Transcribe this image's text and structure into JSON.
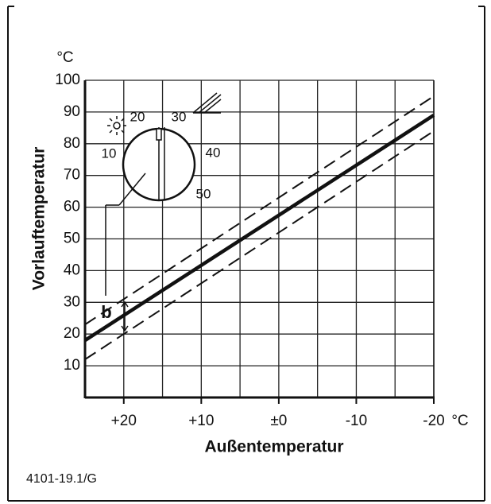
{
  "chart_data": {
    "type": "line",
    "y_unit": "°C",
    "x_unit": "°C",
    "ylabel": "Vorlauftemperatur",
    "xlabel": "Außentemperatur",
    "xlim": [
      25,
      -20
    ],
    "ylim": [
      0,
      100
    ],
    "xticks": [
      {
        "value": 20,
        "label": "+20"
      },
      {
        "value": 10,
        "label": "+10"
      },
      {
        "value": 0,
        "label": "±0"
      },
      {
        "value": -10,
        "label": "-10"
      },
      {
        "value": -20,
        "label": "-20"
      }
    ],
    "xminor": [
      15,
      5,
      -5,
      -15
    ],
    "yticks": [
      10,
      20,
      30,
      40,
      50,
      60,
      70,
      80,
      90,
      100
    ],
    "grid": true,
    "series": [
      {
        "x": [
          25,
          -20
        ],
        "values": [
          18,
          89
        ],
        "color": "#111",
        "style": "solid"
      },
      {
        "x": [
          25,
          -20
        ],
        "values": [
          23,
          95
        ],
        "color": "#111",
        "style": "dashed"
      },
      {
        "x": [
          25,
          -20
        ],
        "values": [
          12,
          84
        ],
        "color": "#111",
        "style": "dashed"
      }
    ],
    "dial_labels": [
      10,
      20,
      30,
      40,
      50
    ],
    "annotation": "b",
    "code": "4101-19.1/G"
  }
}
